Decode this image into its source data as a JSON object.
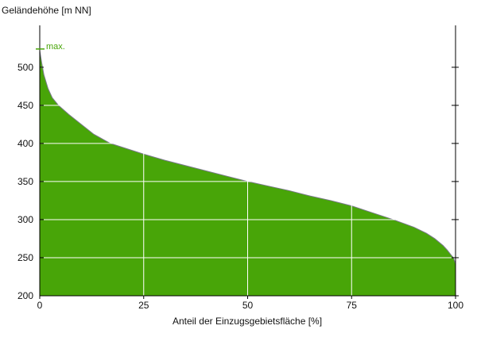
{
  "chart_data": {
    "type": "area",
    "title": "",
    "xlabel": "Anteil der Einzugsgebietsfläche [%]",
    "ylabel": "Geländehöhe [m NN]",
    "xlim": [
      0,
      100
    ],
    "ylim": [
      200,
      555
    ],
    "xticks": [
      0,
      25,
      50,
      75,
      100
    ],
    "yticks": [
      200,
      250,
      300,
      350,
      400,
      450,
      500
    ],
    "grid": true,
    "fill_color": "#48a508",
    "outline_color": "#7a7a8a",
    "max_marker": {
      "label": "max.",
      "value": 524,
      "color": "#48a508"
    },
    "x": [
      0,
      0.5,
      1,
      2,
      3,
      4.5,
      7,
      10,
      13,
      17,
      21,
      25,
      30,
      35,
      40,
      45,
      50,
      55,
      60,
      65,
      70,
      75,
      80,
      85,
      90,
      93,
      95,
      97,
      98,
      99,
      99.5,
      100
    ],
    "y": [
      522,
      505,
      490,
      472,
      460,
      450,
      438,
      425,
      412,
      400,
      393,
      386,
      378,
      371,
      364,
      357,
      350,
      344,
      338,
      331,
      325,
      318,
      309,
      300,
      290,
      282,
      275,
      266,
      260,
      253,
      250,
      242
    ]
  }
}
